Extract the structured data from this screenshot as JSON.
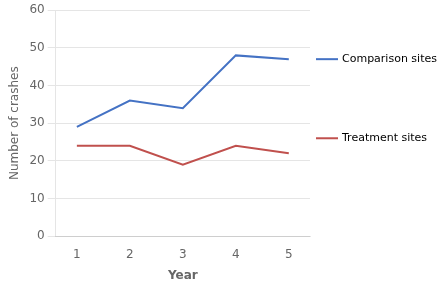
{
  "chart_data": {
    "type": "line",
    "xlabel": "Year",
    "ylabel": "Number of crashes",
    "x": [
      1,
      2,
      3,
      4,
      5
    ],
    "series": [
      {
        "color": "#4472C4",
        "values": [
          29,
          36,
          34,
          48,
          47
        ]
      },
      {
        "color": "#C0504D",
        "values": [
          24,
          24,
          19,
          24,
          22
        ]
      }
    ],
    "annotations": [
      {
        "text": "Comparison sites",
        "y": 47,
        "color": "#4472C4"
      },
      {
        "text": "Treatment sites",
        "y": 26,
        "color": "#C0504D"
      }
    ],
    "xlim": [
      0.6,
      5.4
    ],
    "xticks": [
      1,
      2,
      3,
      4,
      5
    ],
    "ylim": [
      0,
      60
    ],
    "yticks": [
      0,
      10,
      20,
      30,
      40,
      50,
      60
    ],
    "grid": true
  }
}
